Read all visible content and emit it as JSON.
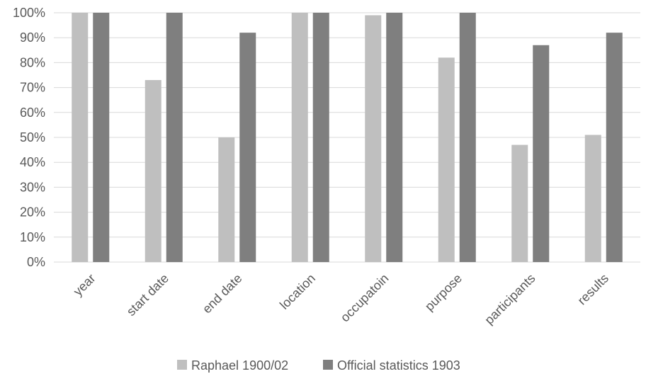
{
  "chart_data": {
    "type": "bar",
    "title": "",
    "xlabel": "",
    "ylabel": "",
    "ylim": [
      0,
      100
    ],
    "yticks": [
      "0%",
      "10%",
      "20%",
      "30%",
      "40%",
      "50%",
      "60%",
      "70%",
      "80%",
      "90%",
      "100%"
    ],
    "grid": true,
    "legend_position": "bottom",
    "categories": [
      "year",
      "start date",
      "end date",
      "location",
      "occupatoin",
      "purpose",
      "participants",
      "results"
    ],
    "series": [
      {
        "name": "Raphael 1900/02",
        "color": "#bfbfbf",
        "values": [
          100,
          73,
          50,
          100,
          99,
          82,
          47,
          51
        ]
      },
      {
        "name": "Official statistics 1903",
        "color": "#7f7f7f",
        "values": [
          100,
          100,
          92,
          100,
          100,
          100,
          87,
          92
        ]
      }
    ]
  }
}
